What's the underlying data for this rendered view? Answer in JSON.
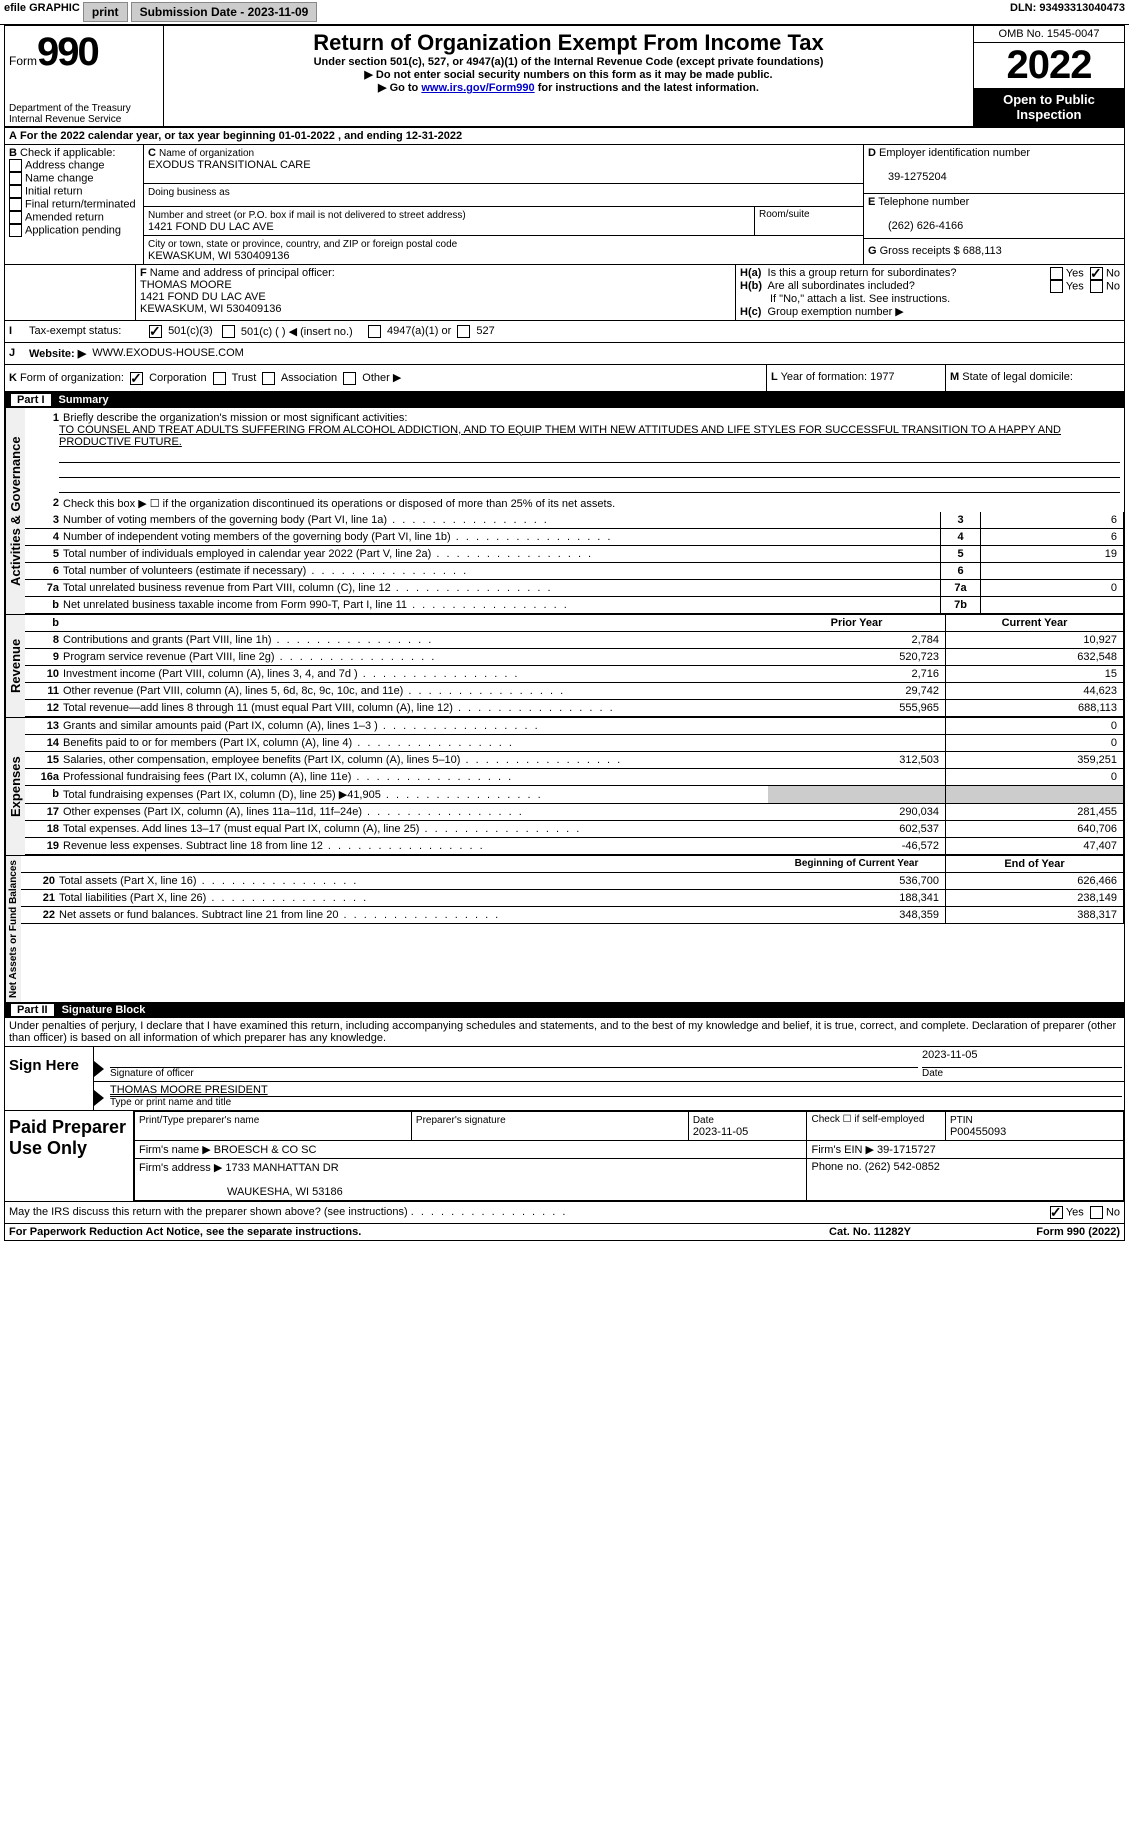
{
  "topbar": {
    "efile": "efile GRAPHIC",
    "print": "print",
    "sub_label": "Submission Date - ",
    "sub_date": "2023-11-09",
    "dln_label": "DLN: ",
    "dln": "93493313040473"
  },
  "header": {
    "form_label": "Form",
    "form_num": "990",
    "dept": "Department of the Treasury",
    "irs": "Internal Revenue Service",
    "title": "Return of Organization Exempt From Income Tax",
    "sub1": "Under section 501(c), 527, or 4947(a)(1) of the Internal Revenue Code (except private foundations)",
    "sub2": "▶ Do not enter social security numbers on this form as it may be made public.",
    "sub3_pre": "▶ Go to ",
    "sub3_link": "www.irs.gov/Form990",
    "sub3_post": " for instructions and the latest information.",
    "omb": "OMB No. 1545-0047",
    "year": "2022",
    "otp": "Open to Public Inspection"
  },
  "A": {
    "text_pre": "For the 2022 calendar year, or tax year beginning ",
    "begin": "01-01-2022",
    "mid": " , and ending ",
    "end": "12-31-2022"
  },
  "B": {
    "label": "Check if applicable:",
    "items": [
      "Address change",
      "Name change",
      "Initial return",
      "Final return/terminated",
      "Amended return",
      "Application pending"
    ]
  },
  "C": {
    "name_label": "Name of organization",
    "name": "EXODUS TRANSITIONAL CARE",
    "dba_label": "Doing business as",
    "street_label": "Number and street (or P.O. box if mail is not delivered to street address)",
    "room_label": "Room/suite",
    "street": "1421 FOND DU LAC AVE",
    "city_label": "City or town, state or province, country, and ZIP or foreign postal code",
    "city": "KEWASKUM, WI  530409136"
  },
  "D": {
    "label": "Employer identification number",
    "val": "39-1275204"
  },
  "E": {
    "label": "Telephone number",
    "val": "(262) 626-4166"
  },
  "G": {
    "label": "Gross receipts $",
    "val": "688,113"
  },
  "F": {
    "label": "Name and address of principal officer:",
    "name": "THOMAS MOORE",
    "street": "1421 FOND DU LAC AVE",
    "city": "KEWASKUM, WI  530409136"
  },
  "H": {
    "a": "Is this a group return for subordinates?",
    "b": "Are all subordinates included?",
    "b_note": "If \"No,\" attach a list. See instructions.",
    "c": "Group exemption number ▶",
    "yes": "Yes",
    "no": "No"
  },
  "I": {
    "label": "Tax-exempt status:",
    "o1": "501(c)(3)",
    "o2": "501(c) (  ) ◀ (insert no.)",
    "o3": "4947(a)(1) or",
    "o4": "527"
  },
  "J": {
    "label": "Website: ▶",
    "val": "WWW.EXODUS-HOUSE.COM"
  },
  "K": {
    "label": "Form of organization:",
    "o1": "Corporation",
    "o2": "Trust",
    "o3": "Association",
    "o4": "Other ▶"
  },
  "L": {
    "label": "Year of formation:",
    "val": "1977"
  },
  "M": {
    "label": "State of legal domicile:",
    "val": ""
  },
  "part1": {
    "label": "Part I",
    "title": "Summary"
  },
  "line1": {
    "label": "Briefly describe the organization's mission or most significant activities:",
    "text": "TO COUNSEL AND TREAT ADULTS SUFFERING FROM ALCOHOL ADDICTION, AND TO EQUIP THEM WITH NEW ATTITUDES AND LIFE STYLES FOR SUCCESSFUL TRANSITION TO A HAPPY AND PRODUCTIVE FUTURE."
  },
  "line2": "Check this box ▶ ☐ if the organization discontinued its operations or disposed of more than 25% of its net assets.",
  "govlabel": "Activities & Governance",
  "revlabel": "Revenue",
  "explabel": "Expenses",
  "netlabel": "Net Assets or Fund Balances",
  "gov_rows": [
    {
      "n": "3",
      "t": "Number of voting members of the governing body (Part VI, line 1a)",
      "box": "3",
      "v": "6"
    },
    {
      "n": "4",
      "t": "Number of independent voting members of the governing body (Part VI, line 1b)",
      "box": "4",
      "v": "6"
    },
    {
      "n": "5",
      "t": "Total number of individuals employed in calendar year 2022 (Part V, line 2a)",
      "box": "5",
      "v": "19"
    },
    {
      "n": "6",
      "t": "Total number of volunteers (estimate if necessary)",
      "box": "6",
      "v": ""
    },
    {
      "n": "7a",
      "t": "Total unrelated business revenue from Part VIII, column (C), line 12",
      "box": "7a",
      "v": "0"
    },
    {
      "n": "b",
      "t": "Net unrelated business taxable income from Form 990-T, Part I, line 11",
      "box": "7b",
      "v": ""
    }
  ],
  "col_hdr": {
    "prior": "Prior Year",
    "curr": "Current Year",
    "boy": "Beginning of Current Year",
    "eoy": "End of Year"
  },
  "rev_rows": [
    {
      "n": "8",
      "t": "Contributions and grants (Part VIII, line 1h)",
      "p": "2,784",
      "c": "10,927"
    },
    {
      "n": "9",
      "t": "Program service revenue (Part VIII, line 2g)",
      "p": "520,723",
      "c": "632,548"
    },
    {
      "n": "10",
      "t": "Investment income (Part VIII, column (A), lines 3, 4, and 7d )",
      "p": "2,716",
      "c": "15"
    },
    {
      "n": "11",
      "t": "Other revenue (Part VIII, column (A), lines 5, 6d, 8c, 9c, 10c, and 11e)",
      "p": "29,742",
      "c": "44,623"
    },
    {
      "n": "12",
      "t": "Total revenue—add lines 8 through 11 (must equal Part VIII, column (A), line 12)",
      "p": "555,965",
      "c": "688,113"
    }
  ],
  "exp_rows": [
    {
      "n": "13",
      "t": "Grants and similar amounts paid (Part IX, column (A), lines 1–3 )",
      "p": "",
      "c": "0"
    },
    {
      "n": "14",
      "t": "Benefits paid to or for members (Part IX, column (A), line 4)",
      "p": "",
      "c": "0"
    },
    {
      "n": "15",
      "t": "Salaries, other compensation, employee benefits (Part IX, column (A), lines 5–10)",
      "p": "312,503",
      "c": "359,251"
    },
    {
      "n": "16a",
      "t": "Professional fundraising fees (Part IX, column (A), line 11e)",
      "p": "",
      "c": "0"
    },
    {
      "n": "b",
      "t": "Total fundraising expenses (Part IX, column (D), line 25) ▶41,905",
      "p": "shade",
      "c": "shade"
    },
    {
      "n": "17",
      "t": "Other expenses (Part IX, column (A), lines 11a–11d, 11f–24e)",
      "p": "290,034",
      "c": "281,455"
    },
    {
      "n": "18",
      "t": "Total expenses. Add lines 13–17 (must equal Part IX, column (A), line 25)",
      "p": "602,537",
      "c": "640,706"
    },
    {
      "n": "19",
      "t": "Revenue less expenses. Subtract line 18 from line 12",
      "p": "-46,572",
      "c": "47,407"
    }
  ],
  "net_rows": [
    {
      "n": "20",
      "t": "Total assets (Part X, line 16)",
      "p": "536,700",
      "c": "626,466"
    },
    {
      "n": "21",
      "t": "Total liabilities (Part X, line 26)",
      "p": "188,341",
      "c": "238,149"
    },
    {
      "n": "22",
      "t": "Net assets or fund balances. Subtract line 21 from line 20",
      "p": "348,359",
      "c": "388,317"
    }
  ],
  "part2": {
    "label": "Part II",
    "title": "Signature Block"
  },
  "perjury": "Under penalties of perjury, I declare that I have examined this return, including accompanying schedules and statements, and to the best of my knowledge and belief, it is true, correct, and complete. Declaration of preparer (other than officer) is based on all information of which preparer has any knowledge.",
  "sign": {
    "here": "Sign Here",
    "sig_label": "Signature of officer",
    "date_label": "Date",
    "date": "2023-11-05",
    "name": "THOMAS MOORE  PRESIDENT",
    "name_label": "Type or print name and title"
  },
  "preparer": {
    "label": "Paid Preparer Use Only",
    "h1": "Print/Type preparer's name",
    "h2": "Preparer's signature",
    "h3": "Date",
    "h3v": "2023-11-05",
    "h4": "Check ☐ if self-employed",
    "h5": "PTIN",
    "h5v": "P00455093",
    "firm_name_l": "Firm's name    ▶",
    "firm_name": "BROESCH & CO SC",
    "firm_ein_l": "Firm's EIN ▶",
    "firm_ein": "39-1715727",
    "firm_addr_l": "Firm's address ▶",
    "firm_addr": "1733 MANHATTAN DR",
    "firm_city": "WAUKESHA, WI  53186",
    "phone_l": "Phone no.",
    "phone": "(262) 542-0852"
  },
  "footer": {
    "discuss": "May the IRS discuss this return with the preparer shown above? (see instructions)",
    "pra": "For Paperwork Reduction Act Notice, see the separate instructions.",
    "cat": "Cat. No. 11282Y",
    "form": "Form 990 (2022)"
  }
}
